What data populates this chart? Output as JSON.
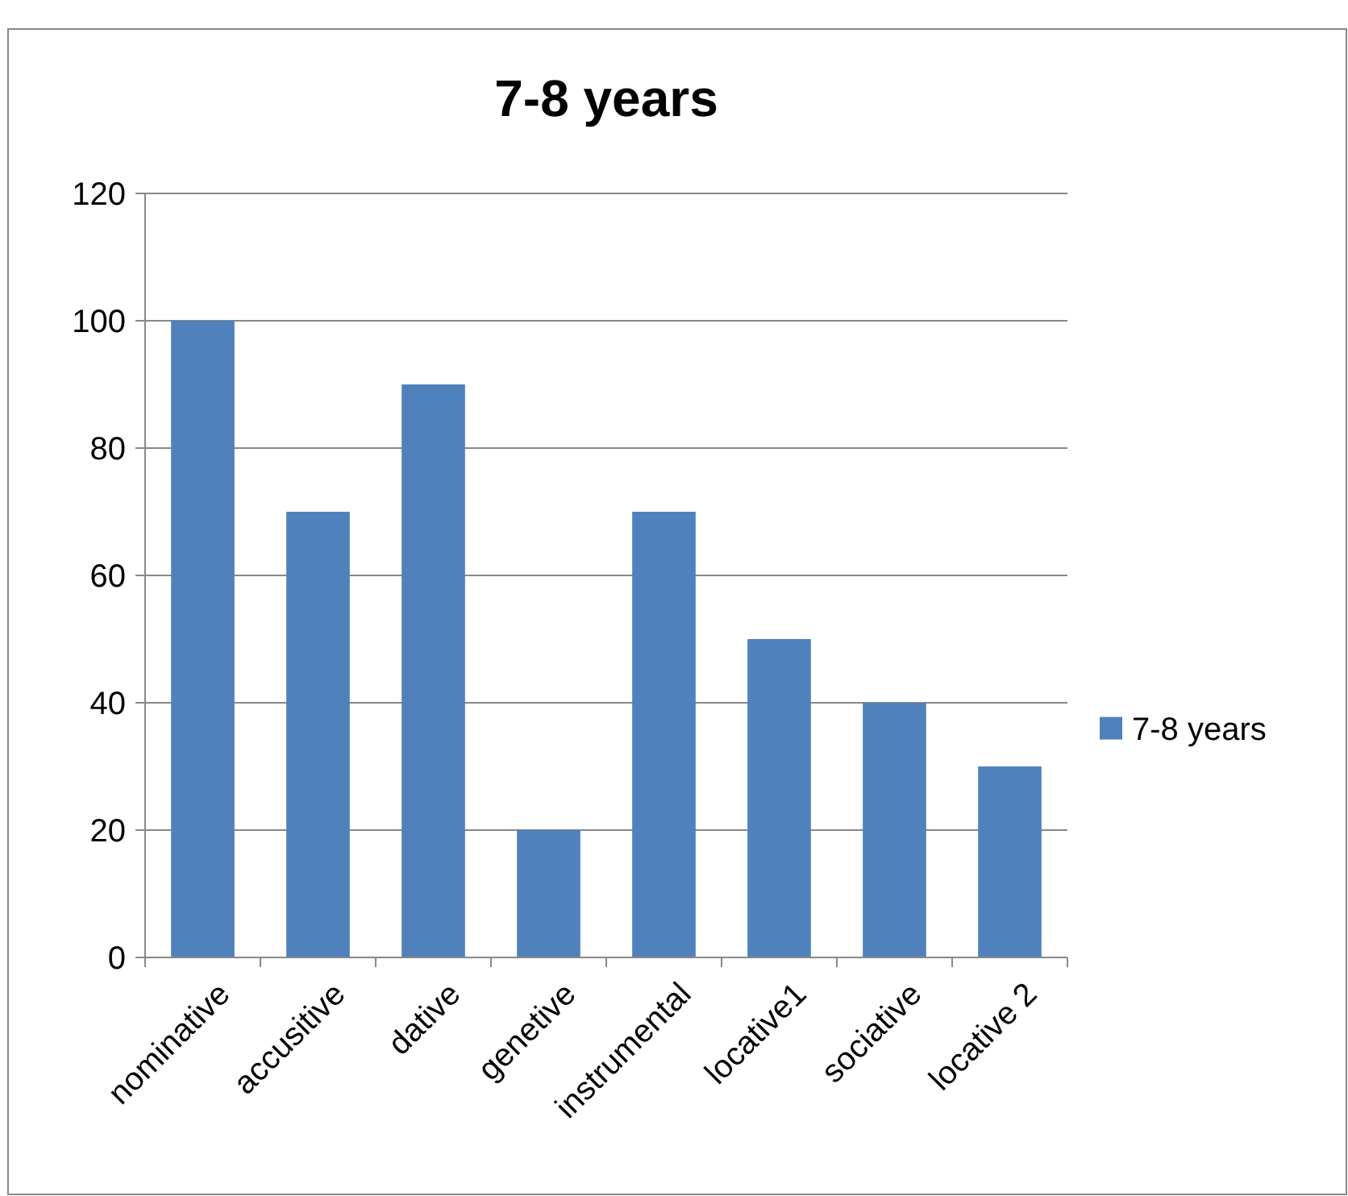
{
  "chart_data": {
    "type": "bar",
    "title": "7-8 years",
    "categories": [
      "nominative",
      "accusitive",
      "dative",
      "genetive",
      "instrumental",
      "locative1",
      "sociative",
      "locative 2"
    ],
    "series": [
      {
        "name": "7-8 years",
        "color": "#4f81bd",
        "values": [
          100,
          70,
          90,
          20,
          70,
          50,
          40,
          30
        ]
      }
    ],
    "ylim": [
      0,
      120
    ],
    "yticks": [
      0,
      20,
      40,
      60,
      80,
      100,
      120
    ],
    "grid": "y",
    "legend": "right"
  }
}
